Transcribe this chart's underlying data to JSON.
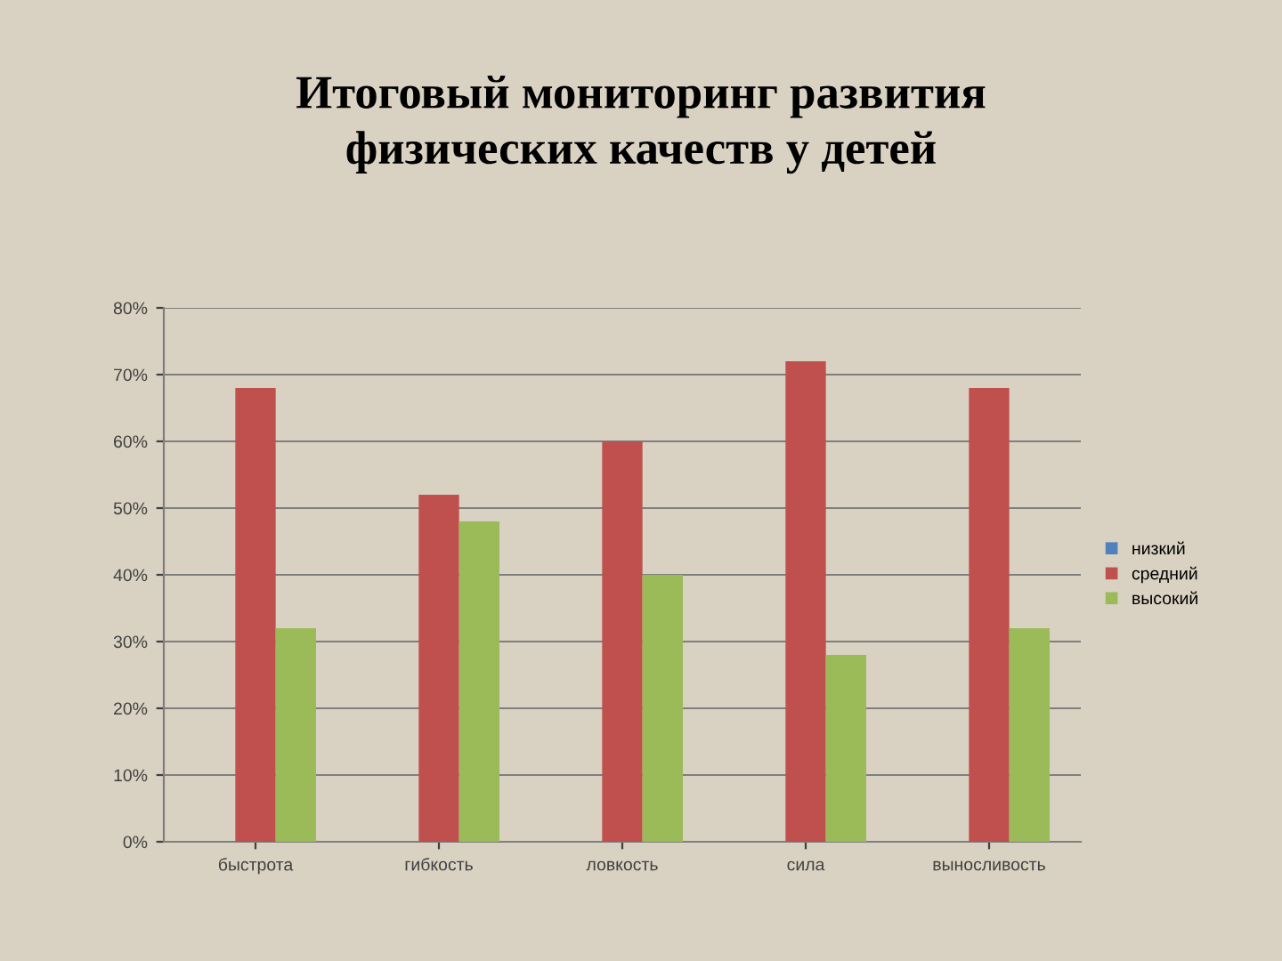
{
  "chart_data": {
    "type": "bar",
    "title": "Итоговый мониторинг развития\nфизических качеств у детей",
    "categories": [
      "быстрота",
      "гибкость",
      "ловкость",
      "сила",
      "выносливость"
    ],
    "series": [
      {
        "name": "низкий",
        "color": "#4f81bd",
        "values": [
          0,
          0,
          0,
          0,
          0
        ]
      },
      {
        "name": "средний",
        "color": "#c0504d",
        "values": [
          68,
          52,
          60,
          72,
          68
        ]
      },
      {
        "name": "высокий",
        "color": "#9bbb59",
        "values": [
          32,
          48,
          40,
          28,
          32
        ]
      }
    ],
    "ylim": [
      0,
      80
    ],
    "yticks": [
      {
        "value": 0,
        "label": "0%"
      },
      {
        "value": 10,
        "label": "10%"
      },
      {
        "value": 20,
        "label": "20%"
      },
      {
        "value": 30,
        "label": "30%"
      },
      {
        "value": 40,
        "label": "40%"
      },
      {
        "value": 50,
        "label": "50%"
      },
      {
        "value": 60,
        "label": "60%"
      },
      {
        "value": 70,
        "label": "70%"
      },
      {
        "value": 80,
        "label": "80%"
      }
    ],
    "grid": "y",
    "legend": "right"
  }
}
